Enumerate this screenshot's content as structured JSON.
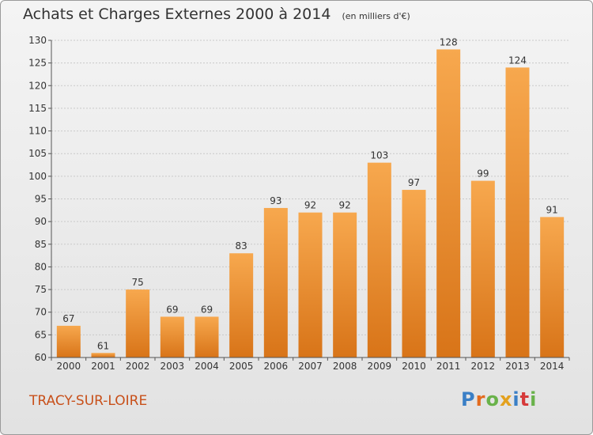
{
  "header": {
    "title": "Achats et Charges Externes 2000 à 2014",
    "unit": "(en milliers d'€)"
  },
  "footer": {
    "city": "TRACY-SUR-LOIRE",
    "logo_text": "Proxiti",
    "logo_letters": [
      {
        "ch": "P",
        "color": "#3a7fc6"
      },
      {
        "ch": "r",
        "color": "#e36b1e"
      },
      {
        "ch": "o",
        "color": "#69b24a"
      },
      {
        "ch": "x",
        "color": "#e3a11e"
      },
      {
        "ch": "i",
        "color": "#3a7fc6"
      },
      {
        "ch": "t",
        "color": "#d63a3a"
      },
      {
        "ch": "i",
        "color": "#69b24a"
      }
    ]
  },
  "colors": {
    "bar_light": "#f7a84e",
    "bar_dark": "#d87418",
    "city": "#c8501a"
  },
  "chart_data": {
    "type": "bar",
    "title": "Achats et Charges Externes 2000 à 2014",
    "subtitle": "(en milliers d'€)",
    "categories": [
      "2000",
      "2001",
      "2002",
      "2003",
      "2004",
      "2005",
      "2006",
      "2007",
      "2008",
      "2009",
      "2010",
      "2011",
      "2012",
      "2013",
      "2014"
    ],
    "values": [
      67,
      61,
      75,
      69,
      69,
      83,
      93,
      92,
      92,
      103,
      97,
      128,
      99,
      124,
      91
    ],
    "ylim": [
      60,
      130
    ],
    "yticks": [
      60,
      65,
      70,
      75,
      80,
      85,
      90,
      95,
      100,
      105,
      110,
      115,
      120,
      125,
      130
    ],
    "grid": true,
    "data_labels": true
  }
}
